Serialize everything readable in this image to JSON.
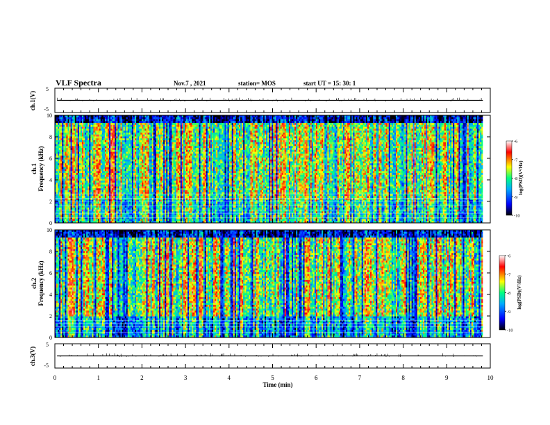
{
  "header": {
    "title": "VLF Spectra",
    "date": "Nov.7 , 2021",
    "station": "station= MOS",
    "start": "start UT = 15: 30: 1"
  },
  "chart_data": [
    {
      "type": "line",
      "ylabel": "ch.1(V)",
      "ylim": [
        -5,
        5
      ],
      "yticks": [
        "5",
        "-5"
      ],
      "baseline_value": 0
    },
    {
      "type": "heatmap",
      "ylabel": "ch.1\nFrequency (kHz)",
      "ylim": [
        0,
        10
      ],
      "yticks": [
        "0",
        "2",
        "4",
        "6",
        "8",
        "10"
      ],
      "colorbar": {
        "label": "log(PSD)(V²/Hz)",
        "range": [
          -10,
          -6
        ],
        "ticks": [
          "-6",
          "-7",
          "-8",
          "-9",
          "-10"
        ]
      }
    },
    {
      "type": "heatmap",
      "ylabel": "ch.2\nFrequency (kHz)",
      "ylim": [
        0,
        10
      ],
      "yticks": [
        "0",
        "2",
        "4",
        "6",
        "8",
        "10"
      ],
      "colorbar": {
        "label": "log(PSD)(V²/Hz)",
        "range": [
          -10,
          -6
        ],
        "ticks": [
          "-6",
          "-7",
          "-8",
          "-9",
          "-10"
        ]
      }
    },
    {
      "type": "line",
      "ylabel": "ch.3(V)",
      "ylim": [
        -5,
        5
      ],
      "yticks": [
        "5",
        "-5"
      ],
      "baseline_value": 0
    }
  ],
  "xaxis": {
    "label": "Time (min)",
    "xlim": [
      0,
      10
    ],
    "ticks": [
      "0",
      "1",
      "2",
      "3",
      "4",
      "5",
      "6",
      "7",
      "8",
      "9",
      "10"
    ]
  },
  "colors": {
    "colormap": [
      "#000000",
      "#0000ff",
      "#00aaff",
      "#00ff80",
      "#ffff00",
      "#ff0000",
      "#ffffff"
    ]
  }
}
